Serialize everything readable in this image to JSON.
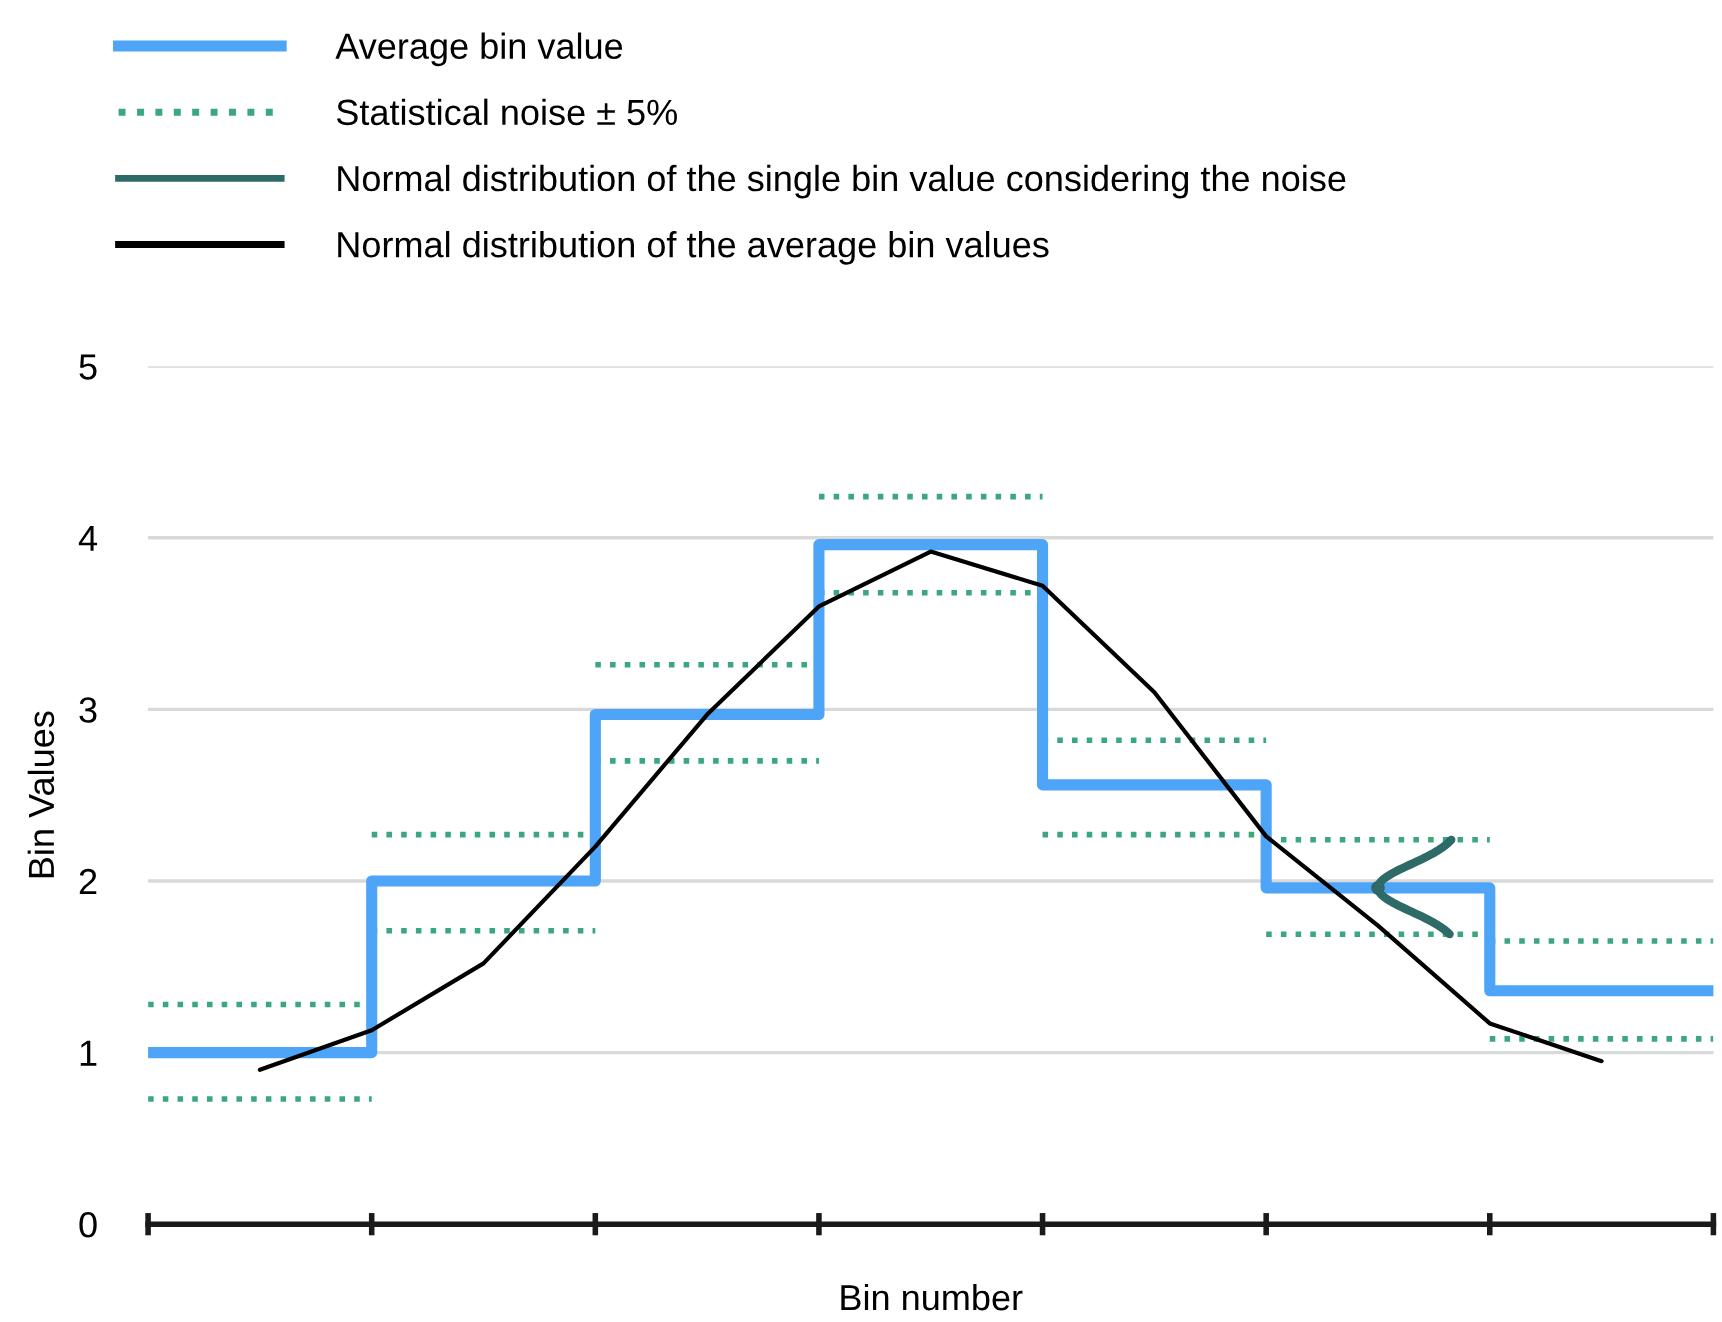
{
  "chart_data": {
    "type": "step",
    "xlabel": "Bin number",
    "ylabel": "Bin Values",
    "categories": [
      null,
      null,
      null,
      null,
      null,
      null,
      null,
      null,
      null,
      null,
      null,
      null,
      null,
      null,
      null
    ],
    "series": [
      {
        "name": "Average bin value",
        "color": "#4ea4f6",
        "line_style": "solid",
        "values": [
          1.0,
          1.0,
          2.0,
          2.0,
          2.97,
          2.97,
          3.96,
          3.96,
          2.56,
          2.56,
          1.96,
          1.96,
          1.36,
          1.36,
          1.36
        ]
      },
      {
        "name": "Statistical noise ± 5%",
        "color": "#3ba77c",
        "line_style": "dotted",
        "values": [
          1.28,
          1.28,
          2.27,
          2.27,
          3.26,
          3.26,
          4.24,
          4.24,
          2.82,
          2.82,
          2.24,
          2.24,
          1.65,
          1.65,
          1.65
        ]
      },
      {
        "color": "#3ba77c",
        "line_style": "dotted",
        "values": [
          0.73,
          0.73,
          1.71,
          1.71,
          2.7,
          2.7,
          3.68,
          3.68,
          2.27,
          2.27,
          1.69,
          1.69,
          1.08,
          1.08,
          1.08
        ]
      },
      {
        "name": "Normal distribution of the single bin value considering the noise",
        "type": "line",
        "color": "#2e6b68",
        "line_style": "solid",
        "marker": "circle",
        "values": [
          null,
          null,
          null,
          null,
          null,
          null,
          null,
          null,
          null,
          null,
          null,
          1.96,
          null,
          null,
          null
        ]
      },
      {
        "name": "Normal distribution of the average bin values",
        "type": "line",
        "color": "#000000",
        "line_style": "solid",
        "values": [
          null,
          0.9,
          1.13,
          1.52,
          2.2,
          2.97,
          3.6,
          3.92,
          3.72,
          3.1,
          2.26,
          1.74,
          1.17,
          0.95,
          null
        ]
      }
    ],
    "ylim": [
      0,
      5
    ],
    "yticks": [
      0,
      1,
      2,
      3,
      4,
      5
    ],
    "grid": "y",
    "legend": "top left",
    "marker": "none"
  }
}
